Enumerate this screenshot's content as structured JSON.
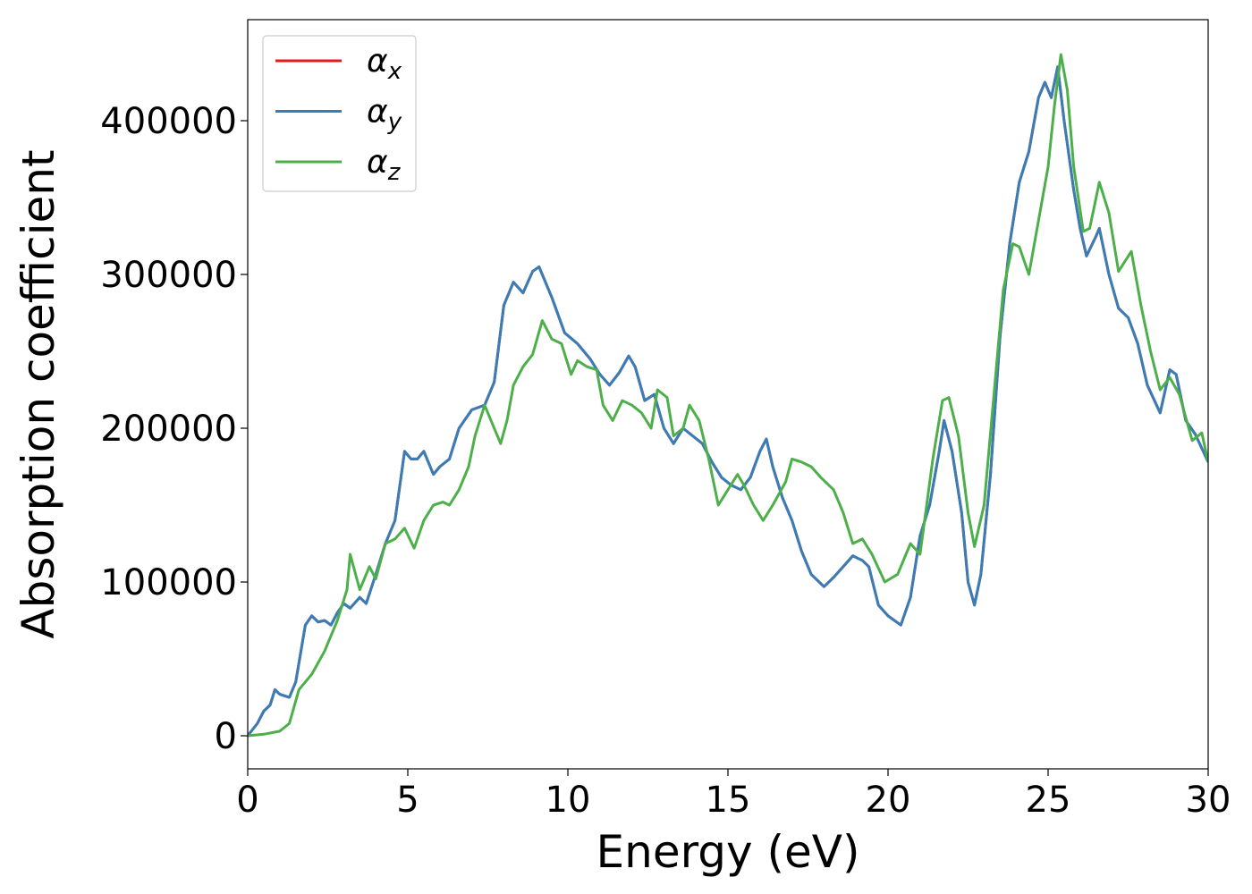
{
  "chart_data": {
    "type": "line",
    "xlabel": "Energy (eV)",
    "ylabel": "Absorption coefficient",
    "xlim": [
      0,
      30
    ],
    "xticks": [
      0,
      5,
      10,
      15,
      20,
      25,
      30
    ],
    "ylim": [
      -21500,
      465700
    ],
    "yticks": [
      0,
      100000,
      200000,
      300000,
      400000
    ],
    "legend": "upper left",
    "series": [
      {
        "name": "αx",
        "color": "#e41a1c",
        "x": [
          0,
          0.3,
          0.5,
          0.7,
          0.85,
          1.0,
          1.3,
          1.5,
          1.8,
          2.0,
          2.2,
          2.4,
          2.6,
          2.8,
          3.0,
          3.2,
          3.5,
          3.7,
          4.0,
          4.3,
          4.6,
          4.9,
          5.1,
          5.3,
          5.5,
          5.8,
          6.0,
          6.3,
          6.6,
          7.0,
          7.4,
          7.7,
          8.0,
          8.3,
          8.6,
          8.9,
          9.1,
          9.5,
          9.9,
          10.3,
          10.7,
          11.0,
          11.3,
          11.6,
          11.9,
          12.1,
          12.4,
          12.7,
          13.0,
          13.3,
          13.6,
          13.9,
          14.2,
          14.5,
          14.8,
          15.1,
          15.4,
          15.7,
          16.0,
          16.2,
          16.4,
          16.7,
          17.0,
          17.3,
          17.6,
          18.0,
          18.3,
          18.6,
          18.9,
          19.2,
          19.4,
          19.7,
          20.0,
          20.4,
          20.7,
          21.0,
          21.3,
          21.6,
          21.75,
          22.0,
          22.3,
          22.5,
          22.7,
          22.9,
          23.2,
          23.5,
          23.8,
          24.1,
          24.4,
          24.7,
          24.9,
          25.1,
          25.3,
          25.5,
          25.8,
          26.0,
          26.2,
          26.5,
          26.6,
          26.9,
          27.2,
          27.5,
          27.8,
          28.1,
          28.5,
          28.8,
          29.0,
          29.3,
          29.6,
          30
        ],
        "values": [
          0,
          8000,
          16000,
          20000,
          30000,
          27000,
          25000,
          35000,
          72000,
          78000,
          74000,
          75000,
          72000,
          80000,
          86000,
          83000,
          90000,
          86000,
          105000,
          125000,
          140000,
          185000,
          180000,
          180000,
          185000,
          170000,
          175000,
          180000,
          200000,
          212000,
          215000,
          230000,
          280000,
          295000,
          288000,
          302000,
          305000,
          285000,
          262000,
          255000,
          245000,
          235000,
          228000,
          236000,
          247000,
          240000,
          218000,
          222000,
          200000,
          190000,
          200000,
          195000,
          190000,
          178000,
          168000,
          163000,
          160000,
          168000,
          185000,
          193000,
          175000,
          155000,
          140000,
          120000,
          105000,
          97000,
          103000,
          110000,
          117000,
          114000,
          110000,
          85000,
          78000,
          72000,
          90000,
          130000,
          150000,
          185000,
          205000,
          185000,
          145000,
          100000,
          85000,
          105000,
          170000,
          260000,
          320000,
          360000,
          380000,
          415000,
          425000,
          415000,
          435000,
          400000,
          355000,
          330000,
          312000,
          325000,
          330000,
          300000,
          278000,
          272000,
          255000,
          228000,
          210000,
          238000,
          235000,
          205000,
          196000,
          178000
        ]
      },
      {
        "name": "αy",
        "color": "#377eb8",
        "x": [
          0,
          0.3,
          0.5,
          0.7,
          0.85,
          1.0,
          1.3,
          1.5,
          1.8,
          2.0,
          2.2,
          2.4,
          2.6,
          2.8,
          3.0,
          3.2,
          3.5,
          3.7,
          4.0,
          4.3,
          4.6,
          4.9,
          5.1,
          5.3,
          5.5,
          5.8,
          6.0,
          6.3,
          6.6,
          7.0,
          7.4,
          7.7,
          8.0,
          8.3,
          8.6,
          8.9,
          9.1,
          9.5,
          9.9,
          10.3,
          10.7,
          11.0,
          11.3,
          11.6,
          11.9,
          12.1,
          12.4,
          12.7,
          13.0,
          13.3,
          13.6,
          13.9,
          14.2,
          14.5,
          14.8,
          15.1,
          15.4,
          15.7,
          16.0,
          16.2,
          16.4,
          16.7,
          17.0,
          17.3,
          17.6,
          18.0,
          18.3,
          18.6,
          18.9,
          19.2,
          19.4,
          19.7,
          20.0,
          20.4,
          20.7,
          21.0,
          21.3,
          21.6,
          21.75,
          22.0,
          22.3,
          22.5,
          22.7,
          22.9,
          23.2,
          23.5,
          23.8,
          24.1,
          24.4,
          24.7,
          24.9,
          25.1,
          25.3,
          25.5,
          25.8,
          26.0,
          26.2,
          26.5,
          26.6,
          26.9,
          27.2,
          27.5,
          27.8,
          28.1,
          28.5,
          28.8,
          29.0,
          29.3,
          29.6,
          30
        ],
        "values": [
          0,
          8000,
          16000,
          20000,
          30000,
          27000,
          25000,
          35000,
          72000,
          78000,
          74000,
          75000,
          72000,
          80000,
          86000,
          83000,
          90000,
          86000,
          105000,
          125000,
          140000,
          185000,
          180000,
          180000,
          185000,
          170000,
          175000,
          180000,
          200000,
          212000,
          215000,
          230000,
          280000,
          295000,
          288000,
          302000,
          305000,
          285000,
          262000,
          255000,
          245000,
          235000,
          228000,
          236000,
          247000,
          240000,
          218000,
          222000,
          200000,
          190000,
          200000,
          195000,
          190000,
          178000,
          168000,
          163000,
          160000,
          168000,
          185000,
          193000,
          175000,
          155000,
          140000,
          120000,
          105000,
          97000,
          103000,
          110000,
          117000,
          114000,
          110000,
          85000,
          78000,
          72000,
          90000,
          130000,
          150000,
          185000,
          205000,
          185000,
          145000,
          100000,
          85000,
          105000,
          170000,
          260000,
          320000,
          360000,
          380000,
          415000,
          425000,
          415000,
          435000,
          400000,
          355000,
          330000,
          312000,
          325000,
          330000,
          300000,
          278000,
          272000,
          255000,
          228000,
          210000,
          238000,
          235000,
          205000,
          196000,
          178000
        ]
      },
      {
        "name": "αz",
        "color": "#4daf4a",
        "x": [
          0,
          0.5,
          1.0,
          1.3,
          1.6,
          2.0,
          2.4,
          2.8,
          3.1,
          3.2,
          3.5,
          3.8,
          4.0,
          4.3,
          4.6,
          4.9,
          5.2,
          5.5,
          5.8,
          6.1,
          6.3,
          6.6,
          6.9,
          7.1,
          7.4,
          7.6,
          7.9,
          8.1,
          8.3,
          8.6,
          8.9,
          9.2,
          9.5,
          9.8,
          10.1,
          10.3,
          10.6,
          10.9,
          11.1,
          11.4,
          11.7,
          12.0,
          12.3,
          12.6,
          12.8,
          13.1,
          13.3,
          13.6,
          13.8,
          14.1,
          14.4,
          14.7,
          15.0,
          15.3,
          15.5,
          15.8,
          16.1,
          16.4,
          16.8,
          17.0,
          17.3,
          17.6,
          17.9,
          18.3,
          18.6,
          18.9,
          19.2,
          19.5,
          19.9,
          20.3,
          20.7,
          21.0,
          21.4,
          21.7,
          21.9,
          22.2,
          22.5,
          22.7,
          23.0,
          23.3,
          23.6,
          23.9,
          24.1,
          24.4,
          24.7,
          25.0,
          25.2,
          25.4,
          25.6,
          25.8,
          26.1,
          26.3,
          26.6,
          26.9,
          27.2,
          27.6,
          27.9,
          28.2,
          28.5,
          28.8,
          29.1,
          29.5,
          29.8,
          30
        ],
        "values": [
          0,
          1000,
          3000,
          8000,
          30000,
          40000,
          55000,
          75000,
          95000,
          118000,
          95000,
          110000,
          102000,
          125000,
          128000,
          135000,
          122000,
          140000,
          150000,
          152000,
          150000,
          160000,
          175000,
          195000,
          215000,
          205000,
          190000,
          205000,
          228000,
          240000,
          248000,
          270000,
          258000,
          255000,
          235000,
          244000,
          240000,
          238000,
          215000,
          205000,
          218000,
          215000,
          210000,
          200000,
          225000,
          220000,
          195000,
          200000,
          215000,
          205000,
          180000,
          150000,
          160000,
          170000,
          163000,
          150000,
          140000,
          150000,
          165000,
          180000,
          178000,
          175000,
          168000,
          160000,
          145000,
          125000,
          128000,
          118000,
          100000,
          105000,
          125000,
          118000,
          180000,
          218000,
          220000,
          195000,
          145000,
          123000,
          150000,
          220000,
          290000,
          320000,
          318000,
          300000,
          335000,
          370000,
          410000,
          443000,
          420000,
          370000,
          328000,
          330000,
          360000,
          340000,
          302000,
          315000,
          280000,
          250000,
          225000,
          233000,
          222000,
          192000,
          197000,
          178000
        ]
      }
    ]
  }
}
